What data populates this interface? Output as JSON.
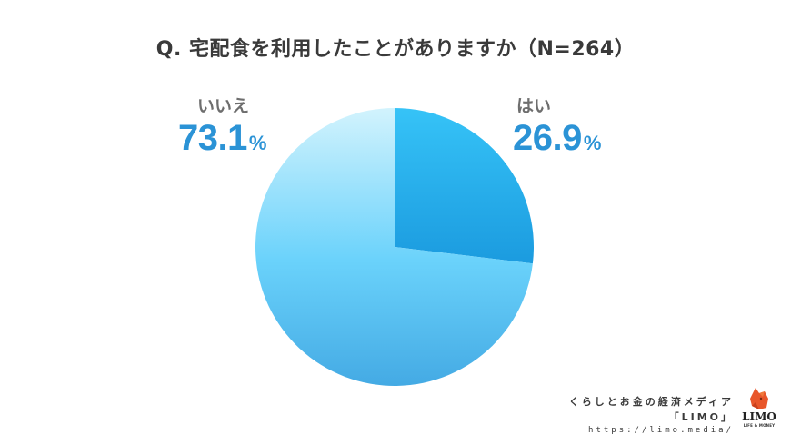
{
  "header": {
    "title": "Q. 宅配食を利用したことがありますか（N=264）"
  },
  "labels": {
    "no": {
      "text": "いいえ",
      "value": "73.1",
      "unit": "%"
    },
    "yes": {
      "text": "はい",
      "value": "26.9",
      "unit": "%"
    }
  },
  "colors": {
    "yes_top": "#33c0f6",
    "yes_bottom": "#1d9ee0",
    "no_top": "#cdf1fd",
    "no_mid": "#6dd3fb",
    "no_bottom": "#46aee6",
    "percent_text": "#2b93d6",
    "label_text": "#6e6e6e"
  },
  "footer": {
    "tagline": "くらしとお金の経済メディア",
    "brand_quoted": "「LIMO」",
    "url": "https://limo.media/",
    "logo_word": "LIMO",
    "logo_sub": "LIFE & MONEY"
  },
  "chart_data": {
    "type": "pie",
    "title": "Q. 宅配食を利用したことがありますか（N=264）",
    "categories": [
      "はい",
      "いいえ"
    ],
    "values": [
      26.9,
      73.1
    ],
    "unit": "%",
    "sample_size": 264,
    "start_angle": "12 o'clock",
    "direction": "clockwise",
    "legend": "none (direct labels)",
    "label_positions": {
      "はい": "upper-right",
      "いいえ": "upper-left"
    }
  }
}
